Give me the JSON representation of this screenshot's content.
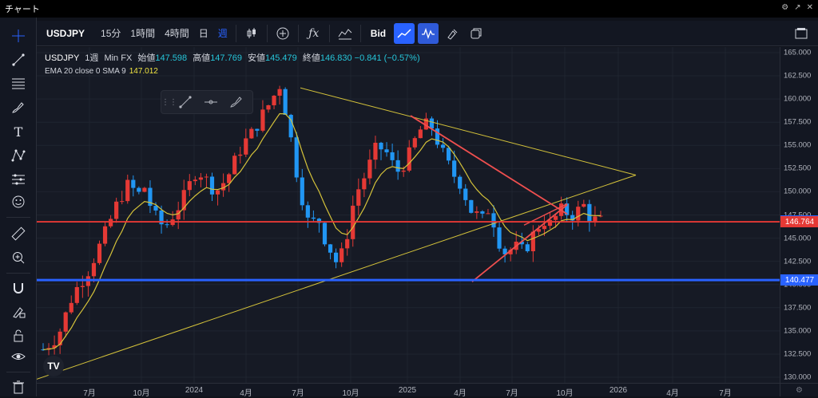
{
  "window": {
    "title": "チャート"
  },
  "toolbar": {
    "symbol": "USDJPY",
    "intervals": [
      "15分",
      "1時間",
      "4時間",
      "日",
      "週"
    ],
    "active_interval": "週",
    "bid_label": "Bid"
  },
  "legend": {
    "symbol": "USDJPY",
    "interval": "1週",
    "source": "Min FX",
    "open_label": "始値",
    "open": "147.598",
    "high_label": "高値",
    "high": "147.769",
    "low_label": "安値",
    "low": "145.479",
    "close_label": "終値",
    "close": "146.830",
    "change": "−0.841 (−0.57%)"
  },
  "indicator": {
    "label": "EMA 20 close 0 SMA 9",
    "value": "147.012"
  },
  "price_labels": [
    {
      "value": "146.830",
      "color": "#2962ff"
    },
    {
      "value": "146.764",
      "color": "#e53935"
    },
    {
      "value": "140.477",
      "color": "#2962ff"
    }
  ],
  "colors": {
    "up": "#e53935",
    "down": "#2196f3",
    "ema": "#d4c23a",
    "hline_red": "#e53935",
    "hline_blue": "#2962ff"
  },
  "icons": [
    "crosshair-icon",
    "trendline-icon",
    "fib-icon",
    "brush-icon",
    "text-icon",
    "pattern-icon",
    "prediction-icon",
    "emoji-icon",
    "ruler-icon",
    "zoom-in-icon",
    "magnet-icon",
    "lock-pen-icon",
    "lock-icon",
    "eye-icon",
    "trash-icon"
  ],
  "chart_data": {
    "type": "candlestick",
    "ylim": [
      129.4,
      165.6
    ],
    "y_ticks": [
      "165.000",
      "162.500",
      "160.000",
      "157.500",
      "155.000",
      "152.500",
      "150.000",
      "147.500",
      "145.000",
      "142.500",
      "140.000",
      "137.500",
      "135.000",
      "132.500",
      "130.000"
    ],
    "x_ticks": [
      "7月",
      "10月",
      "2024",
      "4月",
      "7月",
      "10月",
      "2025",
      "4月",
      "7月",
      "10月",
      "2026",
      "4月",
      "7月"
    ],
    "horizontal_lines": [
      146.764,
      140.477
    ],
    "current_price": 146.83
  }
}
